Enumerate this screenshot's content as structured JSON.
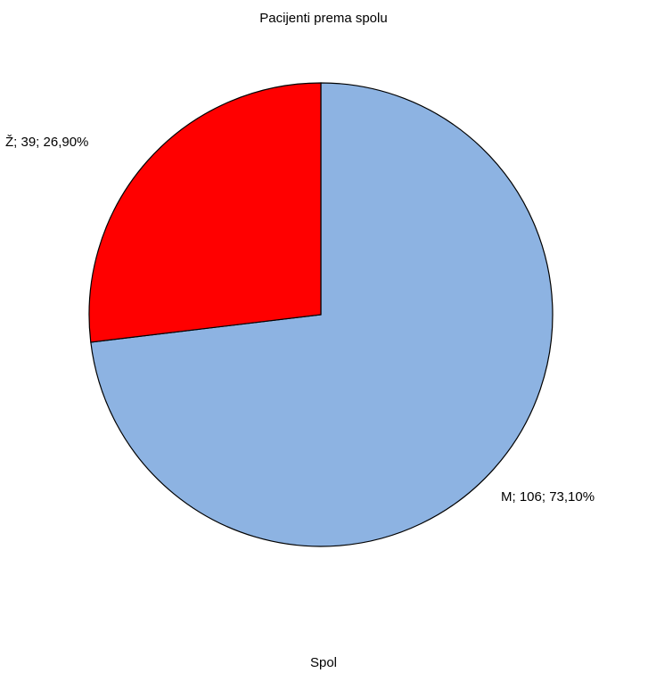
{
  "chart_data": {
    "type": "pie",
    "title": "Pacijenti prema spolu",
    "xlabel": "Spol",
    "slices": [
      {
        "name": "M",
        "value": 106,
        "percent": "73,10%",
        "label": "M; 106; 73,10%",
        "color": "#8DB3E2"
      },
      {
        "name": "Ž",
        "value": 39,
        "percent": "26,90%",
        "label": "Ž; 39; 26,90%",
        "color": "#FF0000"
      }
    ]
  }
}
